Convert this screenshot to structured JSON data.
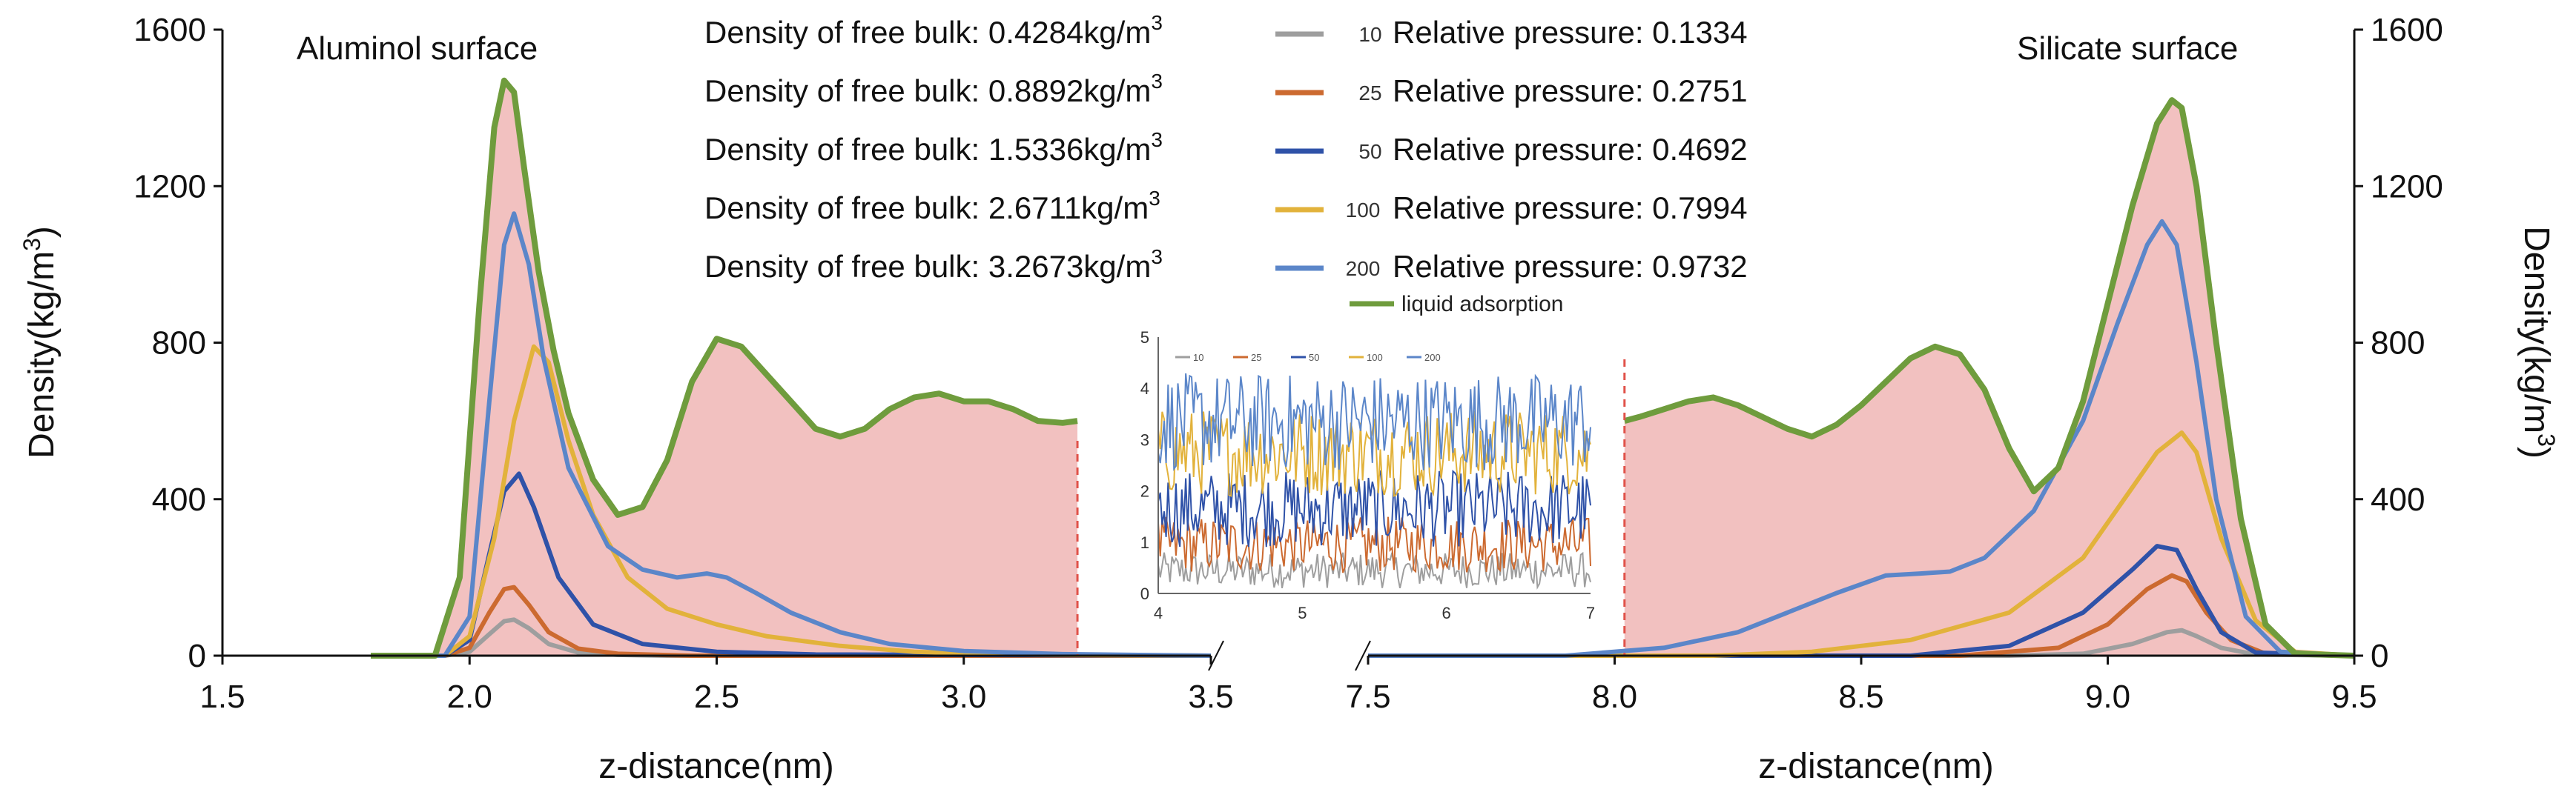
{
  "chart_data": [
    {
      "type": "line",
      "panel": "left",
      "title": "Aluminol surface",
      "xlabel": "z-distance(nm)",
      "ylabel": "Density(kg/m3)",
      "ylabel_main": "Density(kg/m",
      "ylabel_exp": "3",
      "ylabel_close": ")",
      "xlim": [
        1.5,
        3.5
      ],
      "ylim": [
        0,
        1600
      ],
      "xticks": [
        "1.5",
        "2.0",
        "2.5",
        "3.0",
        "3.5"
      ],
      "yticks": [
        "0",
        "400",
        "800",
        "1200",
        "1600"
      ],
      "cutoff_x": 3.23,
      "series": [
        {
          "name": "10",
          "color": "#9e9e9e",
          "x": [
            1.8,
            1.95,
            2.0,
            2.04,
            2.07,
            2.09,
            2.12,
            2.16,
            2.22,
            2.3,
            2.4,
            3.5
          ],
          "y": [
            0,
            0,
            10,
            55,
            88,
            92,
            70,
            30,
            8,
            2,
            0,
            0
          ]
        },
        {
          "name": "25",
          "color": "#cc6a30",
          "x": [
            1.8,
            1.95,
            2.0,
            2.04,
            2.07,
            2.09,
            2.12,
            2.16,
            2.22,
            2.3,
            2.45,
            3.5
          ],
          "y": [
            0,
            0,
            20,
            110,
            170,
            175,
            130,
            60,
            18,
            5,
            0,
            0
          ]
        },
        {
          "name": "50",
          "color": "#2f52a8",
          "x": [
            1.8,
            1.95,
            2.0,
            2.04,
            2.07,
            2.1,
            2.13,
            2.18,
            2.25,
            2.35,
            2.5,
            2.7,
            3.5
          ],
          "y": [
            0,
            0,
            40,
            260,
            420,
            465,
            380,
            200,
            80,
            30,
            10,
            3,
            0
          ]
        },
        {
          "name": "100",
          "color": "#e2b23b",
          "x": [
            1.8,
            1.95,
            2.0,
            2.05,
            2.09,
            2.13,
            2.16,
            2.2,
            2.25,
            2.32,
            2.4,
            2.5,
            2.6,
            2.75,
            2.9,
            3.1,
            3.5
          ],
          "y": [
            0,
            0,
            50,
            300,
            600,
            790,
            750,
            550,
            360,
            200,
            120,
            80,
            50,
            25,
            10,
            3,
            0
          ]
        },
        {
          "name": "200",
          "color": "#5b86c9",
          "x": [
            1.8,
            1.95,
            2.0,
            2.04,
            2.07,
            2.09,
            2.12,
            2.15,
            2.2,
            2.28,
            2.35,
            2.42,
            2.48,
            2.52,
            2.58,
            2.65,
            2.75,
            2.85,
            3.0,
            3.2,
            3.5
          ],
          "y": [
            0,
            0,
            100,
            650,
            1050,
            1130,
            1000,
            760,
            480,
            280,
            220,
            200,
            210,
            200,
            160,
            110,
            60,
            30,
            12,
            4,
            0
          ]
        },
        {
          "name": "liquid adsorption",
          "color": "#6f9c3d",
          "x": [
            1.8,
            1.93,
            1.98,
            2.02,
            2.05,
            2.07,
            2.09,
            2.11,
            2.14,
            2.17,
            2.2,
            2.25,
            2.3,
            2.35,
            2.4,
            2.45,
            2.5,
            2.55,
            2.6,
            2.65,
            2.7,
            2.75,
            2.8,
            2.85,
            2.9,
            2.95,
            3.0,
            3.05,
            3.1,
            3.15,
            3.2,
            3.23
          ],
          "y": [
            0,
            0,
            200,
            900,
            1350,
            1470,
            1440,
            1250,
            980,
            780,
            620,
            450,
            360,
            380,
            500,
            700,
            810,
            790,
            720,
            650,
            580,
            560,
            580,
            630,
            660,
            670,
            650,
            650,
            630,
            600,
            595,
            600
          ]
        }
      ]
    },
    {
      "type": "line",
      "panel": "right",
      "title": "Silicate surface",
      "xlabel": "z-distance(nm)",
      "ylabel": "Density(kg/m3)",
      "ylabel_main": "Density(kg/m",
      "ylabel_exp": "3",
      "ylabel_close": ")",
      "xlim": [
        7.5,
        9.5
      ],
      "ylim": [
        0,
        1600
      ],
      "xticks": [
        "7.5",
        "8.0",
        "8.5",
        "9.0",
        "9.5"
      ],
      "yticks": [
        "0",
        "400",
        "800",
        "1200",
        "1600"
      ],
      "cutoff_x": 8.02,
      "series": [
        {
          "name": "10",
          "color": "#9e9e9e",
          "x": [
            7.5,
            8.8,
            8.95,
            9.05,
            9.12,
            9.15,
            9.18,
            9.23,
            9.3,
            9.5
          ],
          "y": [
            0,
            0,
            5,
            30,
            60,
            65,
            50,
            20,
            3,
            0
          ]
        },
        {
          "name": "25",
          "color": "#cc6a30",
          "x": [
            7.5,
            8.7,
            8.9,
            9.0,
            9.08,
            9.13,
            9.16,
            9.2,
            9.25,
            9.32,
            9.5
          ],
          "y": [
            0,
            0,
            20,
            80,
            170,
            205,
            190,
            110,
            40,
            5,
            0
          ]
        },
        {
          "name": "50",
          "color": "#2f52a8",
          "x": [
            7.5,
            8.6,
            8.8,
            8.95,
            9.05,
            9.1,
            9.14,
            9.18,
            9.23,
            9.3,
            9.5
          ],
          "y": [
            0,
            0,
            25,
            110,
            220,
            280,
            270,
            170,
            60,
            8,
            0
          ]
        },
        {
          "name": "100",
          "color": "#e2b23b",
          "x": [
            7.5,
            8.2,
            8.4,
            8.6,
            8.8,
            8.95,
            9.05,
            9.1,
            9.15,
            9.18,
            9.23,
            9.3,
            9.38,
            9.5
          ],
          "y": [
            0,
            0,
            10,
            40,
            110,
            250,
            430,
            520,
            570,
            520,
            300,
            90,
            10,
            0
          ]
        },
        {
          "name": "200",
          "color": "#5b86c9",
          "x": [
            7.5,
            7.9,
            8.1,
            8.25,
            8.35,
            8.45,
            8.55,
            8.62,
            8.68,
            8.75,
            8.85,
            8.95,
            9.02,
            9.08,
            9.11,
            9.14,
            9.18,
            9.22,
            9.28,
            9.35,
            9.5
          ],
          "y": [
            0,
            0,
            20,
            60,
            110,
            160,
            205,
            210,
            215,
            250,
            370,
            600,
            850,
            1050,
            1110,
            1050,
            750,
            400,
            100,
            10,
            0
          ]
        },
        {
          "name": "liquid adsorption",
          "color": "#6f9c3d",
          "x": [
            8.02,
            8.05,
            8.1,
            8.15,
            8.2,
            8.25,
            8.3,
            8.35,
            8.4,
            8.45,
            8.5,
            8.55,
            8.6,
            8.65,
            8.7,
            8.75,
            8.8,
            8.85,
            8.9,
            8.95,
            9.0,
            9.05,
            9.1,
            9.13,
            9.15,
            9.18,
            9.22,
            9.27,
            9.32,
            9.38,
            9.5
          ],
          "y": [
            600,
            610,
            630,
            650,
            660,
            640,
            610,
            580,
            560,
            590,
            640,
            700,
            760,
            790,
            770,
            680,
            530,
            420,
            480,
            650,
            900,
            1150,
            1360,
            1420,
            1400,
            1200,
            800,
            350,
            80,
            5,
            0
          ]
        }
      ]
    },
    {
      "type": "line",
      "panel": "inset",
      "xlim": [
        4,
        7
      ],
      "ylim": [
        0,
        5
      ],
      "xticks": [
        "4",
        "5",
        "6",
        "7"
      ],
      "yticks": [
        "0",
        "1",
        "2",
        "3",
        "4",
        "5"
      ],
      "legend": [
        "10",
        "25",
        "50",
        "100",
        "200"
      ],
      "series": [
        {
          "name": "10",
          "color": "#9e9e9e",
          "mean": 0.45,
          "amp": 0.35
        },
        {
          "name": "25",
          "color": "#cc6a30",
          "mean": 0.95,
          "amp": 0.55
        },
        {
          "name": "50",
          "color": "#2f52a8",
          "mean": 1.65,
          "amp": 0.75
        },
        {
          "name": "100",
          "color": "#e2b23b",
          "mean": 2.75,
          "amp": 0.85
        },
        {
          "name": "200",
          "color": "#5b86c9",
          "mean": 3.35,
          "amp": 0.95
        }
      ]
    }
  ],
  "legend": {
    "rows": [
      {
        "density": "Density of free bulk: 0.4284kg/m",
        "label": "10",
        "pressure": "Relative pressure: 0.1334",
        "color": "#9e9e9e"
      },
      {
        "density": "Density of free bulk: 0.8892kg/m",
        "label": "25",
        "pressure": "Relative pressure: 0.2751",
        "color": "#cc6a30"
      },
      {
        "density": "Density of free bulk: 1.5336kg/m",
        "label": "50",
        "pressure": "Relative pressure: 0.4692",
        "color": "#2f52a8"
      },
      {
        "density": "Density of free bulk: 2.6711kg/m",
        "label": "100",
        "pressure": "Relative pressure: 0.7994",
        "color": "#e2b23b"
      },
      {
        "density": "Density of free bulk: 3.2673kg/m",
        "label": "200",
        "pressure": "Relative pressure: 0.9732",
        "color": "#5b86c9"
      }
    ],
    "unit_exp": "3",
    "liquid_label": "liquid adsorption",
    "liquid_color": "#6f9c3d"
  },
  "colors": {
    "fill": "#f2c1c0",
    "cutoff": "#e0524a",
    "axis": "#111111"
  }
}
